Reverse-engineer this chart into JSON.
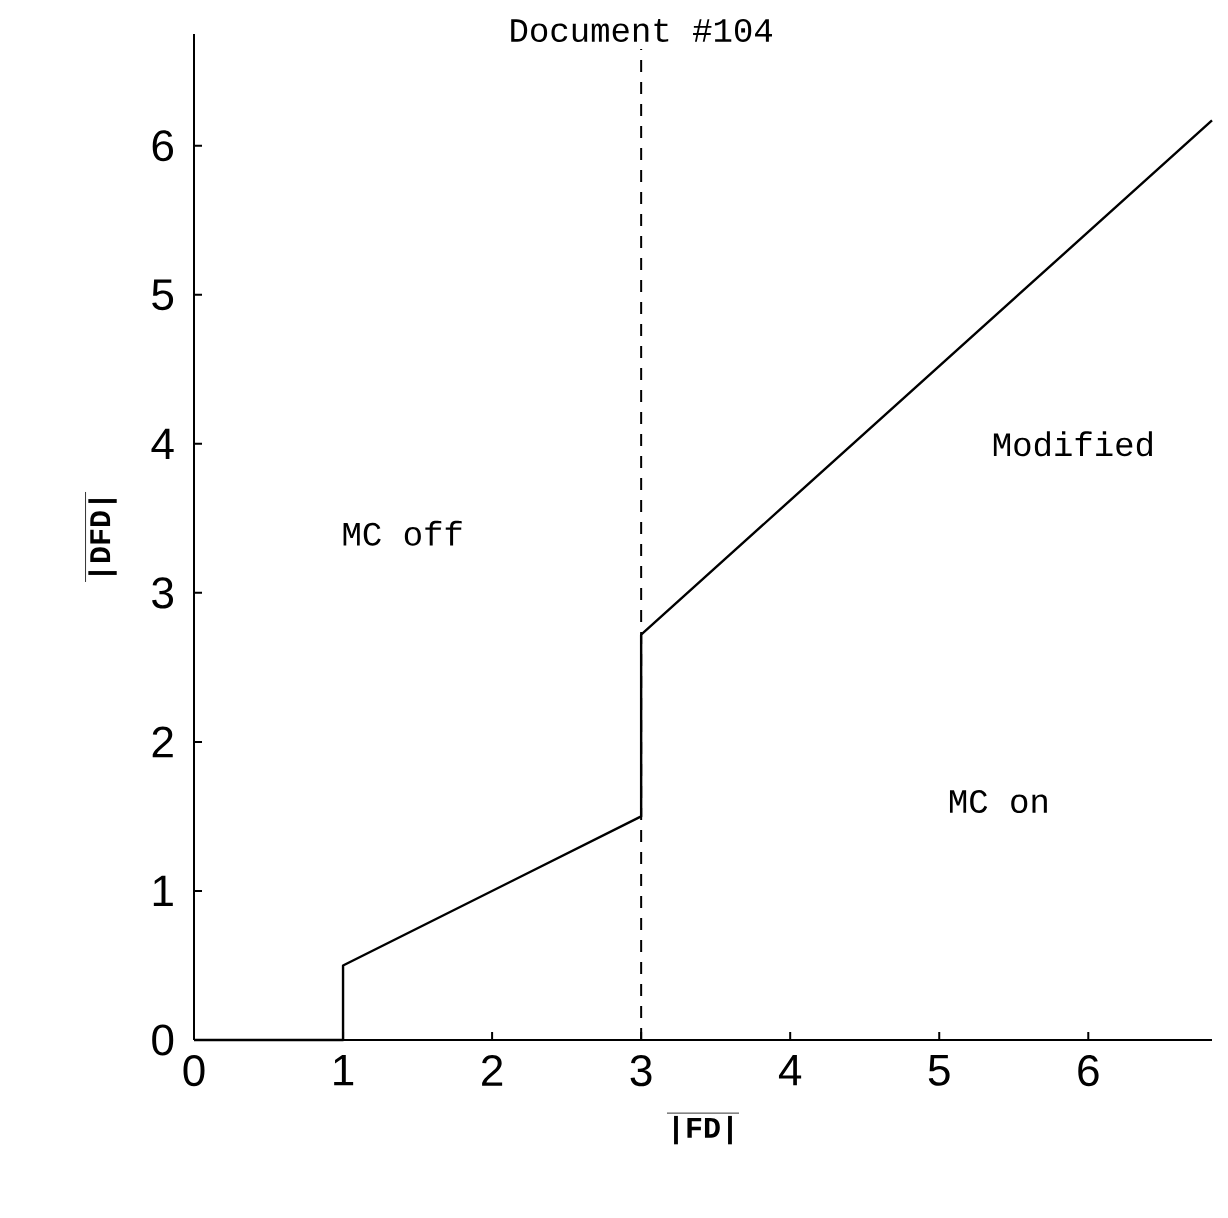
{
  "chart_data": {
    "type": "line",
    "xlabel": "|FD|",
    "ylabel": "|DFD|",
    "x": [
      0,
      1,
      1,
      3,
      3,
      6.83
    ],
    "series": [
      {
        "color": "#000000",
        "values": [
          0,
          0,
          0.5,
          1.5,
          2.72,
          6.17
        ]
      }
    ],
    "xlim": [
      0,
      6.83
    ],
    "ylim": [
      0,
      6.75
    ],
    "xticks": [
      0,
      1,
      2,
      3,
      4,
      5,
      6
    ],
    "yticks": [
      0,
      1,
      2,
      3,
      4,
      5,
      6
    ],
    "grid": false,
    "marker": "none",
    "line_style": "solid",
    "ref_lines": [
      {
        "axis": "x",
        "value": 3,
        "label": "Document #104",
        "line_style": "dashed"
      }
    ],
    "annotations": [
      "MC off",
      "Modified",
      "MC on"
    ]
  }
}
